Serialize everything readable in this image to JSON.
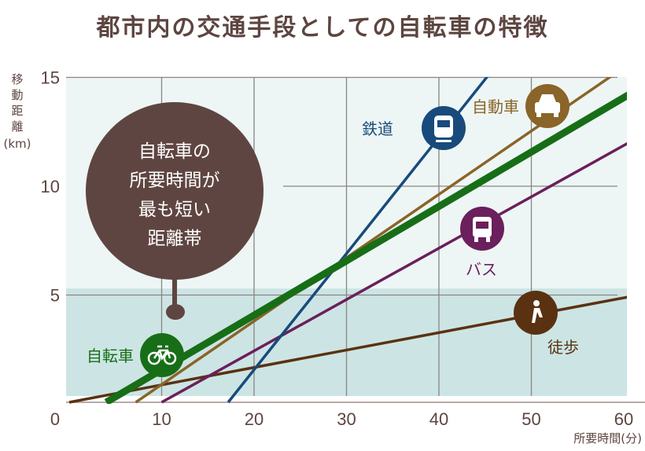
{
  "chart_data": {
    "type": "line",
    "title": "都市内の交通手段としての自転車の特徴",
    "xlabel": "所要時間(分)",
    "ylabel_lines": [
      "移",
      "動",
      "距",
      "離",
      "(km)"
    ],
    "xlim": [
      0,
      60
    ],
    "ylim": [
      0,
      15
    ],
    "xticks": [
      "0",
      "10",
      "20",
      "30",
      "40",
      "50",
      "60"
    ],
    "yticks": [
      "5",
      "10",
      "15"
    ],
    "grid": true,
    "highlight_band": {
      "y_range": [
        0,
        5.3
      ]
    },
    "series": [
      {
        "name": "徒歩",
        "icon": "walking-icon",
        "color": "#5a3212",
        "points": [
          [
            0,
            0
          ],
          [
            60,
            4.8
          ]
        ]
      },
      {
        "name": "自転車",
        "icon": "bicycle-icon",
        "color": "#176e17",
        "points": [
          [
            4,
            0
          ],
          [
            60,
            14
          ]
        ]
      },
      {
        "name": "自動車",
        "icon": "car-icon",
        "color": "#8a6428",
        "points": [
          [
            7.2,
            0
          ],
          [
            58.7,
            15
          ]
        ]
      },
      {
        "name": "バス",
        "icon": "bus-icon",
        "color": "#6b1f5c",
        "points": [
          [
            10,
            0
          ],
          [
            60,
            11.8
          ]
        ]
      },
      {
        "name": "鉄道",
        "icon": "train-icon",
        "color": "#184a7c",
        "points": [
          [
            17.2,
            0
          ],
          [
            45.3,
            15
          ]
        ]
      }
    ],
    "annotation": [
      "自転車の",
      "所要時間が",
      "最も短い",
      "距離帯"
    ]
  },
  "colors": {
    "title": "#5d4540",
    "plot_bg": "#edf6f5",
    "band": "#cce5e4",
    "bubble": "#5f4541",
    "grid": "#8a8580"
  }
}
